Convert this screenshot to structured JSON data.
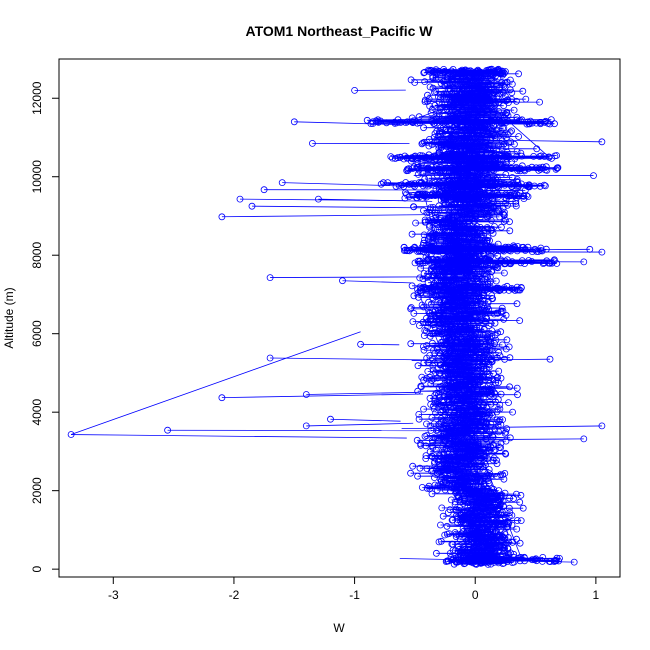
{
  "chart_data": {
    "type": "scatter",
    "title": "ATOM1 Northeast_Pacific W",
    "xlabel": "W",
    "ylabel": "Altitude (m)",
    "xlim": [
      -3.45,
      1.2
    ],
    "ylim": [
      -200,
      13000
    ],
    "x_ticks": [
      -3,
      -2,
      -1,
      0,
      1
    ],
    "x_tick_labels": [
      "-3",
      "-2",
      "-1",
      "0",
      "1"
    ],
    "y_ticks": [
      0,
      2000,
      4000,
      6000,
      8000,
      10000,
      12000
    ],
    "y_tick_labels": [
      "0",
      "2000",
      "4000",
      "6000",
      "8000",
      "10000",
      "12000"
    ],
    "grid": false,
    "legend": "none",
    "marker": "open-circle",
    "connected": true,
    "series_color": "#0000ff",
    "outliers": [
      {
        "x": -3.35,
        "y": 3430
      },
      {
        "x": -2.55,
        "y": 3540
      },
      {
        "x": -2.1,
        "y": 4370
      },
      {
        "x": -2.1,
        "y": 8980
      },
      {
        "x": -1.95,
        "y": 9430
      },
      {
        "x": -1.85,
        "y": 9250
      },
      {
        "x": -1.75,
        "y": 9670
      },
      {
        "x": -1.7,
        "y": 7430
      },
      {
        "x": -1.7,
        "y": 5380
      },
      {
        "x": -1.6,
        "y": 9850
      },
      {
        "x": -1.5,
        "y": 11400
      },
      {
        "x": -1.4,
        "y": 4450
      },
      {
        "x": -1.4,
        "y": 3650
      },
      {
        "x": -1.35,
        "y": 10850
      },
      {
        "x": -1.3,
        "y": 9430
      },
      {
        "x": -1.2,
        "y": 3820
      },
      {
        "x": -1.1,
        "y": 7350
      },
      {
        "x": -1.0,
        "y": 12200
      },
      {
        "x": -0.95,
        "y": 5730
      },
      {
        "x": 0.82,
        "y": 180
      },
      {
        "x": 0.9,
        "y": 3320
      },
      {
        "x": 0.98,
        "y": 10030
      },
      {
        "x": 1.05,
        "y": 10890
      },
      {
        "x": 1.05,
        "y": 8080
      },
      {
        "x": 1.05,
        "y": 3650
      },
      {
        "x": 0.95,
        "y": 8150
      },
      {
        "x": 0.9,
        "y": 7830
      },
      {
        "x": 0.62,
        "y": 5350
      }
    ],
    "dense_bands": [
      {
        "y": 12680,
        "x_min": -0.4,
        "x_max": 0.25
      },
      {
        "y": 12000,
        "x_min": -0.2,
        "x_max": 0.15
      },
      {
        "y": 11400,
        "x_min": -0.9,
        "x_max": 0.7
      },
      {
        "y": 10500,
        "x_min": -0.7,
        "x_max": 0.75
      },
      {
        "y": 10200,
        "x_min": -0.6,
        "x_max": 0.7
      },
      {
        "y": 9800,
        "x_min": -0.8,
        "x_max": 0.6
      },
      {
        "y": 9500,
        "x_min": -0.6,
        "x_max": 0.5
      },
      {
        "y": 8150,
        "x_min": -0.6,
        "x_max": 0.6
      },
      {
        "y": 7830,
        "x_min": -0.5,
        "x_max": 0.7
      },
      {
        "y": 7150,
        "x_min": -0.5,
        "x_max": 0.4
      },
      {
        "y": 250,
        "x_min": -0.25,
        "x_max": 0.7
      }
    ]
  }
}
